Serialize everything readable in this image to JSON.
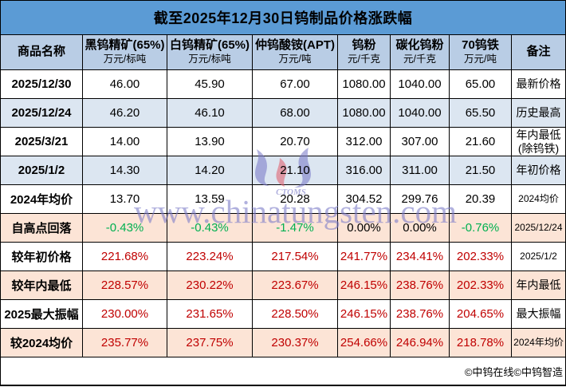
{
  "title": "截至2025年12月30日钨制品价格涨跌幅",
  "columns": [
    {
      "title": "商品名称",
      "unit": ""
    },
    {
      "title": "黑钨精矿(65%)",
      "unit": "万元/标吨"
    },
    {
      "title": "白钨精矿(65%)",
      "unit": "万元/标吨"
    },
    {
      "title": "仲钨酸铵(APT)",
      "unit": "万元/吨"
    },
    {
      "title": "钨粉",
      "unit": "元/千克"
    },
    {
      "title": "碳化钨粉",
      "unit": "元/千克"
    },
    {
      "title": "70钨铁",
      "unit": "万元/吨"
    },
    {
      "title": "备注",
      "unit": ""
    }
  ],
  "rows": [
    {
      "label": "2025/12/30",
      "values": [
        "46.00",
        "45.90",
        "67.00",
        "1080.00",
        "1040.00",
        "65.00"
      ],
      "colors": [
        "black",
        "black",
        "black",
        "black",
        "black",
        "black"
      ],
      "note": "最新价格",
      "note_small": false,
      "bg": "white"
    },
    {
      "label": "2025/12/24",
      "values": [
        "46.20",
        "46.10",
        "68.00",
        "1080.00",
        "1040.00",
        "65.50"
      ],
      "colors": [
        "black",
        "black",
        "black",
        "black",
        "black",
        "black"
      ],
      "note": "历史最高",
      "note_small": false,
      "bg": "blue"
    },
    {
      "label": "2025/3/21",
      "values": [
        "14.00",
        "13.90",
        "20.70",
        "312.00",
        "307.00",
        "21.60"
      ],
      "colors": [
        "black",
        "black",
        "black",
        "black",
        "black",
        "black"
      ],
      "note": "年内最低\n(除钨铁)",
      "note_small": false,
      "bg": "white"
    },
    {
      "label": "2025/1/2",
      "values": [
        "14.30",
        "14.20",
        "21.10",
        "316.00",
        "311.00",
        "21.50"
      ],
      "colors": [
        "black",
        "black",
        "black",
        "black",
        "black",
        "black"
      ],
      "note": "年初价格",
      "note_small": false,
      "bg": "blue"
    },
    {
      "label": "2024年均价",
      "values": [
        "13.70",
        "13.59",
        "20.28",
        "304.52",
        "299.76",
        "20.39"
      ],
      "colors": [
        "black",
        "black",
        "black",
        "black",
        "black",
        "black"
      ],
      "note": "2024均价",
      "note_small": true,
      "bg": "white"
    },
    {
      "label": "自高点回落",
      "values": [
        "-0.43%",
        "-0.43%",
        "-1.47%",
        "0.00%",
        "0.00%",
        "-0.76%"
      ],
      "colors": [
        "green",
        "green",
        "green",
        "black",
        "black",
        "green"
      ],
      "note": "2025/12/24",
      "note_small": true,
      "bg": "peach"
    },
    {
      "label": "较年初价格",
      "values": [
        "221.68%",
        "223.24%",
        "217.54%",
        "241.77%",
        "234.41%",
        "202.33%"
      ],
      "colors": [
        "red",
        "red",
        "red",
        "red",
        "red",
        "red"
      ],
      "note": "2025/1/2",
      "note_small": true,
      "bg": "white"
    },
    {
      "label": "较年内最低",
      "values": [
        "228.57%",
        "230.22%",
        "223.67%",
        "246.15%",
        "238.76%",
        "202.33%"
      ],
      "colors": [
        "red",
        "red",
        "red",
        "red",
        "red",
        "red"
      ],
      "note": "年内最低",
      "note_small": false,
      "bg": "peach"
    },
    {
      "label": "2025最大振幅",
      "values": [
        "230.00%",
        "231.65%",
        "228.50%",
        "246.15%",
        "238.76%",
        "204.65%"
      ],
      "colors": [
        "red",
        "red",
        "red",
        "red",
        "red",
        "red"
      ],
      "note": "最大振幅",
      "note_small": false,
      "bg": "white"
    },
    {
      "label": "较2024均价",
      "values": [
        "235.77%",
        "237.75%",
        "230.37%",
        "254.66%",
        "246.94%",
        "218.78%"
      ],
      "colors": [
        "red",
        "red",
        "red",
        "red",
        "red",
        "red"
      ],
      "note": "2024年均价",
      "note_small": true,
      "bg": "peach"
    }
  ],
  "footer": "©中钨在线©中钨智造",
  "watermark": {
    "text": "www.chinatungsten.com",
    "logo_text": "CTOMS"
  },
  "colors": {
    "title_bg": "#5B9BD5",
    "header_bg": "#B9CDE5",
    "row_blue": "#DCE6F1",
    "row_peach": "#FCE4D6",
    "value_red": "#C00000",
    "value_green": "#00B050",
    "watermark_blue": "#7D7DC8",
    "border": "#000000"
  },
  "chart_data": {
    "type": "table",
    "title": "截至2025年12月30日钨制品价格涨跌幅",
    "columns": [
      "商品名称",
      "黑钨精矿(65%) 万元/标吨",
      "白钨精矿(65%) 万元/标吨",
      "仲钨酸铵(APT) 万元/吨",
      "钨粉 元/千克",
      "碳化钨粉 元/千克",
      "70钨铁 万元/吨",
      "备注"
    ],
    "rows": [
      [
        "2025/12/30",
        "46.00",
        "45.90",
        "67.00",
        "1080.00",
        "1040.00",
        "65.00",
        "最新价格"
      ],
      [
        "2025/12/24",
        "46.20",
        "46.10",
        "68.00",
        "1080.00",
        "1040.00",
        "65.50",
        "历史最高"
      ],
      [
        "2025/3/21",
        "14.00",
        "13.90",
        "20.70",
        "312.00",
        "307.00",
        "21.60",
        "年内最低(除钨铁)"
      ],
      [
        "2025/1/2",
        "14.30",
        "14.20",
        "21.10",
        "316.00",
        "311.00",
        "21.50",
        "年初价格"
      ],
      [
        "2024年均价",
        "13.70",
        "13.59",
        "20.28",
        "304.52",
        "299.76",
        "20.39",
        "2024均价"
      ],
      [
        "自高点回落",
        "-0.43%",
        "-0.43%",
        "-1.47%",
        "0.00%",
        "0.00%",
        "-0.76%",
        "2025/12/24"
      ],
      [
        "较年初价格",
        "221.68%",
        "223.24%",
        "217.54%",
        "241.77%",
        "234.41%",
        "202.33%",
        "2025/1/2"
      ],
      [
        "较年内最低",
        "228.57%",
        "230.22%",
        "223.67%",
        "246.15%",
        "238.76%",
        "202.33%",
        "年内最低"
      ],
      [
        "2025最大振幅",
        "230.00%",
        "231.65%",
        "228.50%",
        "246.15%",
        "238.76%",
        "204.65%",
        "最大振幅"
      ],
      [
        "较2024均价",
        "235.77%",
        "237.75%",
        "230.37%",
        "254.66%",
        "246.94%",
        "218.78%",
        "2024年均价"
      ]
    ]
  }
}
